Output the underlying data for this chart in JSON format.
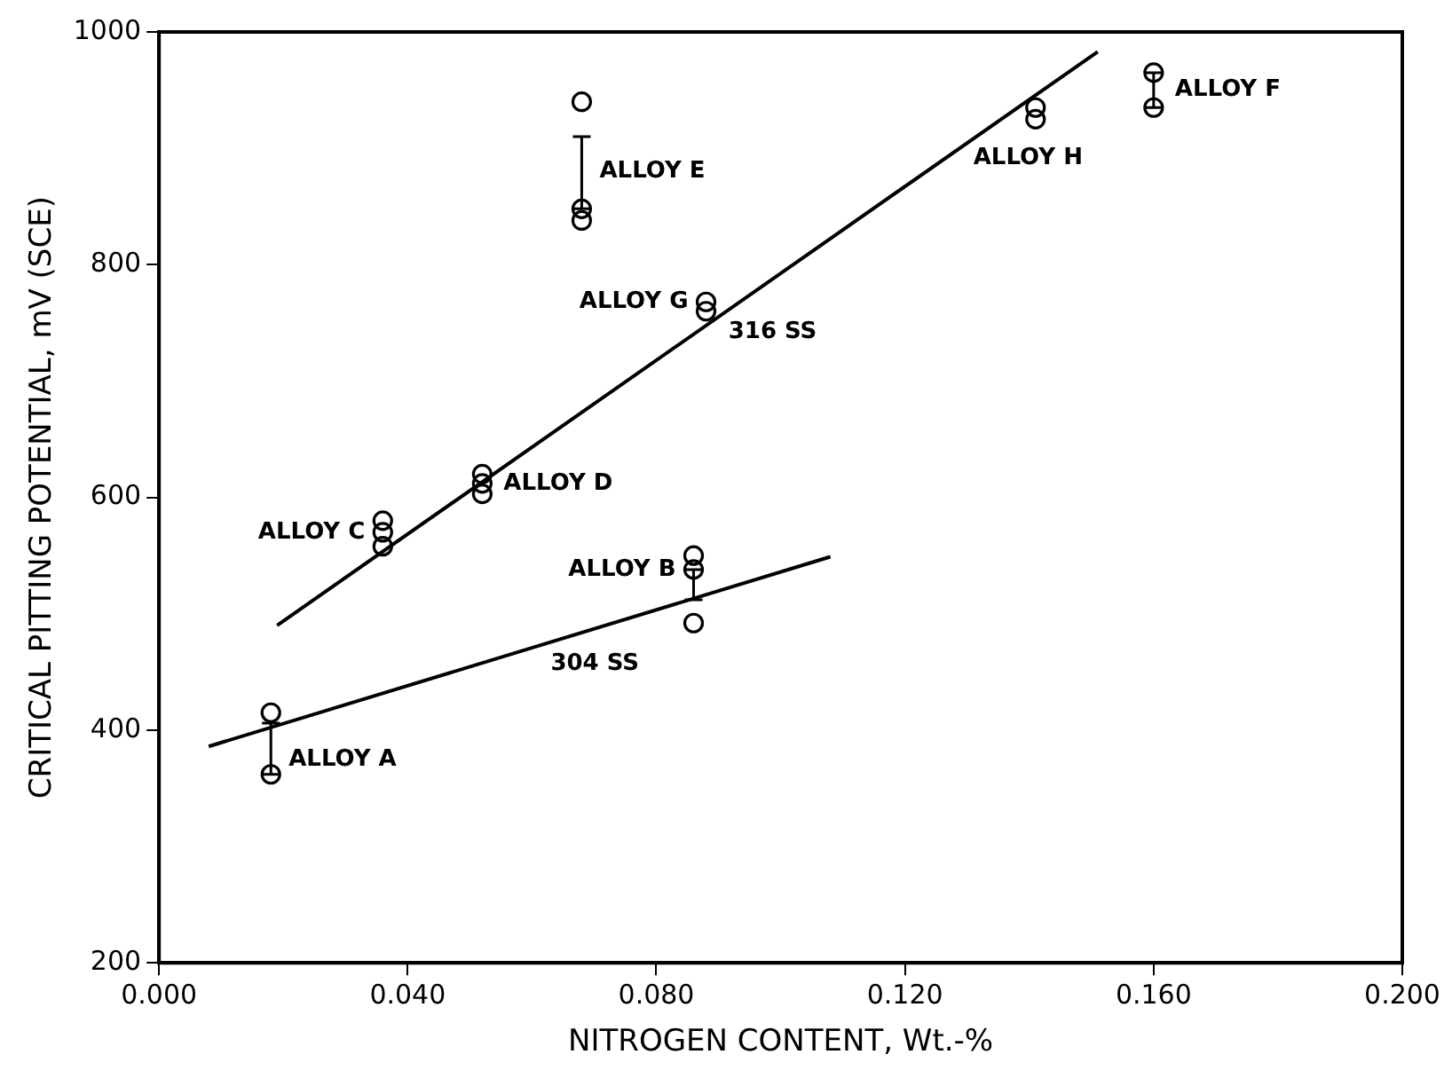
{
  "chart_data": {
    "type": "scatter",
    "xlabel": "NITROGEN CONTENT, Wt.-%",
    "ylabel": "CRITICAL PITTING POTENTIAL, mV (SCE)",
    "xlim": [
      0,
      0.2
    ],
    "xticks": [
      {
        "value": 0,
        "label": "0.000"
      },
      {
        "value": 0.04,
        "label": "0.040"
      },
      {
        "value": 0.08,
        "label": "0.080"
      },
      {
        "value": 0.12,
        "label": "0.120"
      },
      {
        "value": 0.16,
        "label": "0.160"
      },
      {
        "value": 0.2,
        "label": "0.200"
      }
    ],
    "ylim": [
      200,
      1000
    ],
    "yticks": [
      200,
      400,
      600,
      800,
      1000
    ],
    "grid": false,
    "legend": false,
    "marker": "circle",
    "series": [
      {
        "color": "#000000",
        "x": [
          0.018,
          0.018,
          0.086,
          0.086,
          0.086,
          0.036,
          0.036,
          0.036,
          0.052,
          0.052,
          0.052,
          0.068,
          0.068,
          0.068,
          0.088,
          0.088,
          0.141,
          0.141,
          0.16,
          0.16
        ],
        "values": [
          415,
          362,
          550,
          538,
          492,
          580,
          570,
          558,
          620,
          612,
          603,
          940,
          848,
          838,
          768,
          760,
          935,
          925,
          965,
          935
        ],
        "errors": [
          null,
          [
            362,
            406
          ],
          null,
          [
            512,
            538
          ],
          null,
          null,
          null,
          null,
          null,
          null,
          null,
          null,
          [
            848,
            910
          ],
          null,
          null,
          null,
          null,
          null,
          null,
          [
            935,
            965
          ]
        ]
      },
      {
        "type": "line",
        "name": "316 SS",
        "color": "#000000",
        "marker": "none",
        "x": [
          0.019,
          0.151
        ],
        "values": [
          490,
          983
        ]
      },
      {
        "type": "line",
        "name": "304 SS",
        "color": "#000000",
        "marker": "none",
        "x": [
          0.008,
          0.108
        ],
        "values": [
          386,
          549
        ]
      }
    ],
    "annotations": [
      {
        "text": "ALLOY A",
        "x": 0.018,
        "y": 384
      },
      {
        "text": "ALLOY B",
        "x": 0.086,
        "y": 538
      },
      {
        "text": "ALLOY C",
        "x": 0.036,
        "y": 570
      },
      {
        "text": "ALLOY D",
        "x": 0.052,
        "y": 612
      },
      {
        "text": "ALLOY E",
        "x": 0.068,
        "y": 880
      },
      {
        "text": "ALLOY F",
        "x": 0.16,
        "y": 950
      },
      {
        "text": "ALLOY G",
        "x": 0.088,
        "y": 768
      },
      {
        "text": "ALLOY H",
        "x": 0.141,
        "y": 925
      }
    ]
  }
}
